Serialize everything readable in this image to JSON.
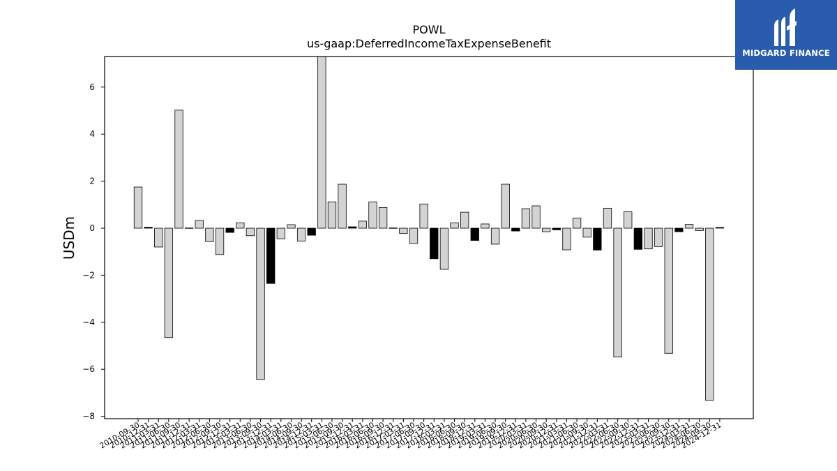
{
  "chart_data": {
    "type": "bar",
    "title": "POWL",
    "subtitle": "us-gaap:DeferredIncomeTaxExpenseBenefit",
    "ylabel": "USDm",
    "xlabel": "",
    "ylim": [
      -8.1,
      7.3
    ],
    "yticks": [
      -8,
      -6,
      -4,
      -2,
      0,
      2,
      4,
      6
    ],
    "ytick_labels": [
      "−8",
      "−6",
      "−4",
      "−2",
      "0",
      "2",
      "4",
      "6"
    ],
    "grid": false,
    "categories": [
      "2010-09-30",
      "2010-12-31",
      "2011-03-31",
      "2011-06-30",
      "2011-09-30",
      "2011-12-31",
      "2012-03-31",
      "2012-06-30",
      "2012-09-30",
      "2012-12-31",
      "2013-03-31",
      "2013-06-30",
      "2013-09-30",
      "2013-12-31",
      "2014-03-31",
      "2014-06-30",
      "2014-09-30",
      "2014-12-31",
      "2015-03-31",
      "2015-06-30",
      "2015-09-30",
      "2015-12-31",
      "2016-03-31",
      "2016-06-30",
      "2016-09-30",
      "2016-12-31",
      "2017-03-31",
      "2017-06-30",
      "2017-09-30",
      "2017-12-31",
      "2018-03-31",
      "2018-06-30",
      "2018-09-30",
      "2018-12-31",
      "2019-03-31",
      "2019-06-30",
      "2019-09-30",
      "2019-12-31",
      "2020-03-31",
      "2020-06-30",
      "2020-09-30",
      "2020-12-31",
      "2021-03-31",
      "2021-06-30",
      "2021-09-30",
      "2021-12-31",
      "2022-03-31",
      "2022-06-30",
      "2022-09-30",
      "2022-12-31",
      "2023-03-31",
      "2023-06-30",
      "2023-09-30",
      "2023-12-31",
      "2024-03-31",
      "2024-06-30",
      "2024-09-30",
      "2024-12-31"
    ],
    "values": [
      1.75,
      0.04,
      -0.8,
      -4.65,
      5.02,
      0.01,
      0.33,
      -0.57,
      -1.12,
      -0.18,
      0.23,
      -0.32,
      -6.43,
      -2.35,
      -0.45,
      0.15,
      -0.55,
      -0.3,
      7.3,
      1.12,
      1.87,
      0.06,
      0.3,
      1.12,
      0.88,
      0.01,
      -0.22,
      -0.65,
      1.03,
      -1.3,
      -1.75,
      0.23,
      0.68,
      -0.52,
      0.18,
      -0.68,
      1.87,
      -0.12,
      0.83,
      0.95,
      -0.15,
      -0.07,
      -0.92,
      0.43,
      -0.38,
      -0.93,
      0.85,
      -5.48,
      0.7,
      -0.9,
      -0.88,
      -0.78,
      -5.32,
      -0.15,
      0.16,
      -0.1,
      -7.32,
      0.03
    ],
    "bar_colors": [
      "#d3d3d3",
      "#000000",
      "#d3d3d3",
      "#d3d3d3",
      "#d3d3d3",
      "#000000",
      "#d3d3d3",
      "#d3d3d3",
      "#d3d3d3",
      "#000000",
      "#d3d3d3",
      "#d3d3d3",
      "#d3d3d3",
      "#000000",
      "#d3d3d3",
      "#d3d3d3",
      "#d3d3d3",
      "#000000",
      "#d3d3d3",
      "#d3d3d3",
      "#d3d3d3",
      "#000000",
      "#d3d3d3",
      "#d3d3d3",
      "#d3d3d3",
      "#000000",
      "#d3d3d3",
      "#d3d3d3",
      "#d3d3d3",
      "#000000",
      "#d3d3d3",
      "#d3d3d3",
      "#d3d3d3",
      "#000000",
      "#d3d3d3",
      "#d3d3d3",
      "#d3d3d3",
      "#000000",
      "#d3d3d3",
      "#d3d3d3",
      "#d3d3d3",
      "#000000",
      "#d3d3d3",
      "#d3d3d3",
      "#d3d3d3",
      "#000000",
      "#d3d3d3",
      "#d3d3d3",
      "#d3d3d3",
      "#000000",
      "#d3d3d3",
      "#d3d3d3",
      "#d3d3d3",
      "#000000",
      "#d3d3d3",
      "#d3d3d3",
      "#d3d3d3",
      "#000000"
    ]
  },
  "logo": {
    "text": "MIDGARD FINANCE",
    "background": "#2a5cad",
    "icon": "midgard-logo-mark"
  }
}
